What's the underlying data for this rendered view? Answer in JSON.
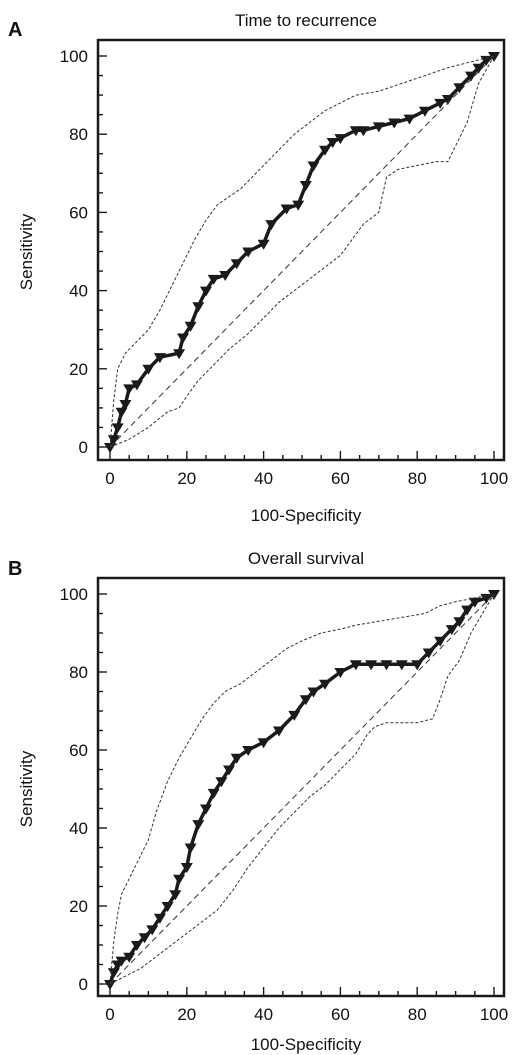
{
  "panels": [
    {
      "letter": "A",
      "title": "Time to recurrence",
      "xlabel": "100-Specificity",
      "ylabel": "Sensitivity"
    },
    {
      "letter": "B",
      "title": "Overall survival",
      "xlabel": "100-Specificity",
      "ylabel": "Sensitivity"
    }
  ],
  "chart_data": [
    {
      "type": "line",
      "title": "Time to recurrence",
      "xlabel": "100-Specificity",
      "ylabel": "Sensitivity",
      "xlim": [
        0,
        100
      ],
      "ylim": [
        0,
        100
      ],
      "xticks": [
        0,
        20,
        40,
        60,
        80,
        100
      ],
      "yticks": [
        0,
        20,
        40,
        60,
        80,
        100
      ],
      "series": [
        {
          "style": "solid-markers",
          "x": [
            0,
            1,
            2,
            3,
            4,
            5,
            7,
            10,
            13,
            18,
            19,
            21,
            23,
            25,
            27,
            30,
            33,
            36,
            40,
            42,
            46,
            49,
            51,
            53,
            56,
            58,
            60,
            64,
            66,
            70,
            74,
            78,
            82,
            86,
            88,
            91,
            94,
            96,
            98,
            100
          ],
          "y": [
            0,
            2,
            5,
            9,
            11,
            15,
            16,
            20,
            23,
            24,
            28,
            31,
            36,
            40,
            43,
            44,
            47,
            50,
            52,
            57,
            61,
            62,
            67,
            72,
            76,
            78,
            79,
            81,
            81,
            82,
            83,
            84,
            86,
            88,
            89,
            92,
            95,
            97,
            99,
            100
          ]
        },
        {
          "style": "dashed-upper-ci",
          "x": [
            0,
            1,
            2,
            4,
            7,
            10,
            13,
            16,
            19,
            22,
            25,
            28,
            31,
            34,
            37,
            40,
            44,
            48,
            52,
            56,
            60,
            64,
            70,
            76,
            82,
            88,
            92,
            96,
            100
          ],
          "y": [
            0,
            12,
            20,
            24,
            27,
            30,
            35,
            41,
            47,
            53,
            58,
            62,
            64,
            66,
            69,
            72,
            76,
            80,
            83,
            86,
            88,
            90,
            91,
            93,
            95,
            97,
            98,
            99,
            100
          ]
        },
        {
          "style": "dashed-lower-ci",
          "x": [
            0,
            5,
            10,
            15,
            18,
            20,
            23,
            27,
            31,
            36,
            40,
            44,
            48,
            52,
            56,
            60,
            63,
            66,
            70,
            72,
            75,
            80,
            85,
            88,
            90,
            93,
            96,
            100
          ],
          "y": [
            0,
            2,
            5,
            9,
            10,
            13,
            17,
            21,
            25,
            29,
            33,
            37,
            40,
            43,
            46,
            49,
            53,
            57,
            60,
            69,
            71,
            72,
            73,
            73,
            77,
            83,
            93,
            100
          ]
        },
        {
          "style": "diagonal-reference",
          "x": [
            0,
            100
          ],
          "y": [
            0,
            100
          ]
        }
      ]
    },
    {
      "type": "line",
      "title": "Overall survival",
      "xlabel": "100-Specificity",
      "ylabel": "Sensitivity",
      "xlim": [
        0,
        100
      ],
      "ylim": [
        0,
        100
      ],
      "xticks": [
        0,
        20,
        40,
        60,
        80,
        100
      ],
      "yticks": [
        0,
        20,
        40,
        60,
        80,
        100
      ],
      "series": [
        {
          "style": "solid-markers",
          "x": [
            0,
            1,
            2,
            3,
            5,
            7,
            9,
            11,
            13,
            15,
            17,
            18,
            20,
            21,
            23,
            25,
            27,
            29,
            31,
            33,
            36,
            40,
            44,
            48,
            51,
            53,
            56,
            60,
            64,
            68,
            72,
            76,
            80,
            83,
            86,
            89,
            91,
            93,
            95,
            98,
            100
          ],
          "y": [
            0,
            3,
            5,
            6,
            7,
            10,
            12,
            14,
            17,
            20,
            23,
            27,
            30,
            35,
            41,
            45,
            49,
            52,
            55,
            58,
            60,
            62,
            65,
            69,
            73,
            75,
            77,
            80,
            82,
            82,
            82,
            82,
            82,
            85,
            88,
            91,
            93,
            96,
            98,
            99,
            100
          ]
        },
        {
          "style": "dashed-upper-ci",
          "x": [
            0,
            1,
            2,
            3,
            5,
            7,
            10,
            12,
            15,
            18,
            21,
            24,
            27,
            30,
            34,
            38,
            42,
            46,
            50,
            55,
            60,
            64,
            70,
            76,
            82,
            86,
            90,
            95,
            100
          ],
          "y": [
            0,
            11,
            18,
            23,
            27,
            31,
            37,
            44,
            52,
            58,
            63,
            68,
            72,
            75,
            77,
            80,
            83,
            86,
            88,
            90,
            91,
            92,
            93,
            94,
            95,
            97,
            98,
            99,
            100
          ]
        },
        {
          "style": "dashed-lower-ci",
          "x": [
            0,
            4,
            8,
            12,
            16,
            20,
            24,
            28,
            32,
            36,
            40,
            44,
            48,
            52,
            56,
            60,
            64,
            67,
            69,
            72,
            76,
            80,
            84,
            86,
            88,
            91,
            94,
            97,
            100
          ],
          "y": [
            0,
            2,
            4,
            7,
            10,
            13,
            16,
            19,
            24,
            30,
            35,
            40,
            44,
            48,
            51,
            55,
            59,
            64,
            66,
            67,
            67,
            67,
            68,
            73,
            79,
            83,
            90,
            95,
            100
          ]
        },
        {
          "style": "diagonal-reference",
          "x": [
            0,
            100
          ],
          "y": [
            0,
            100
          ]
        }
      ]
    }
  ]
}
